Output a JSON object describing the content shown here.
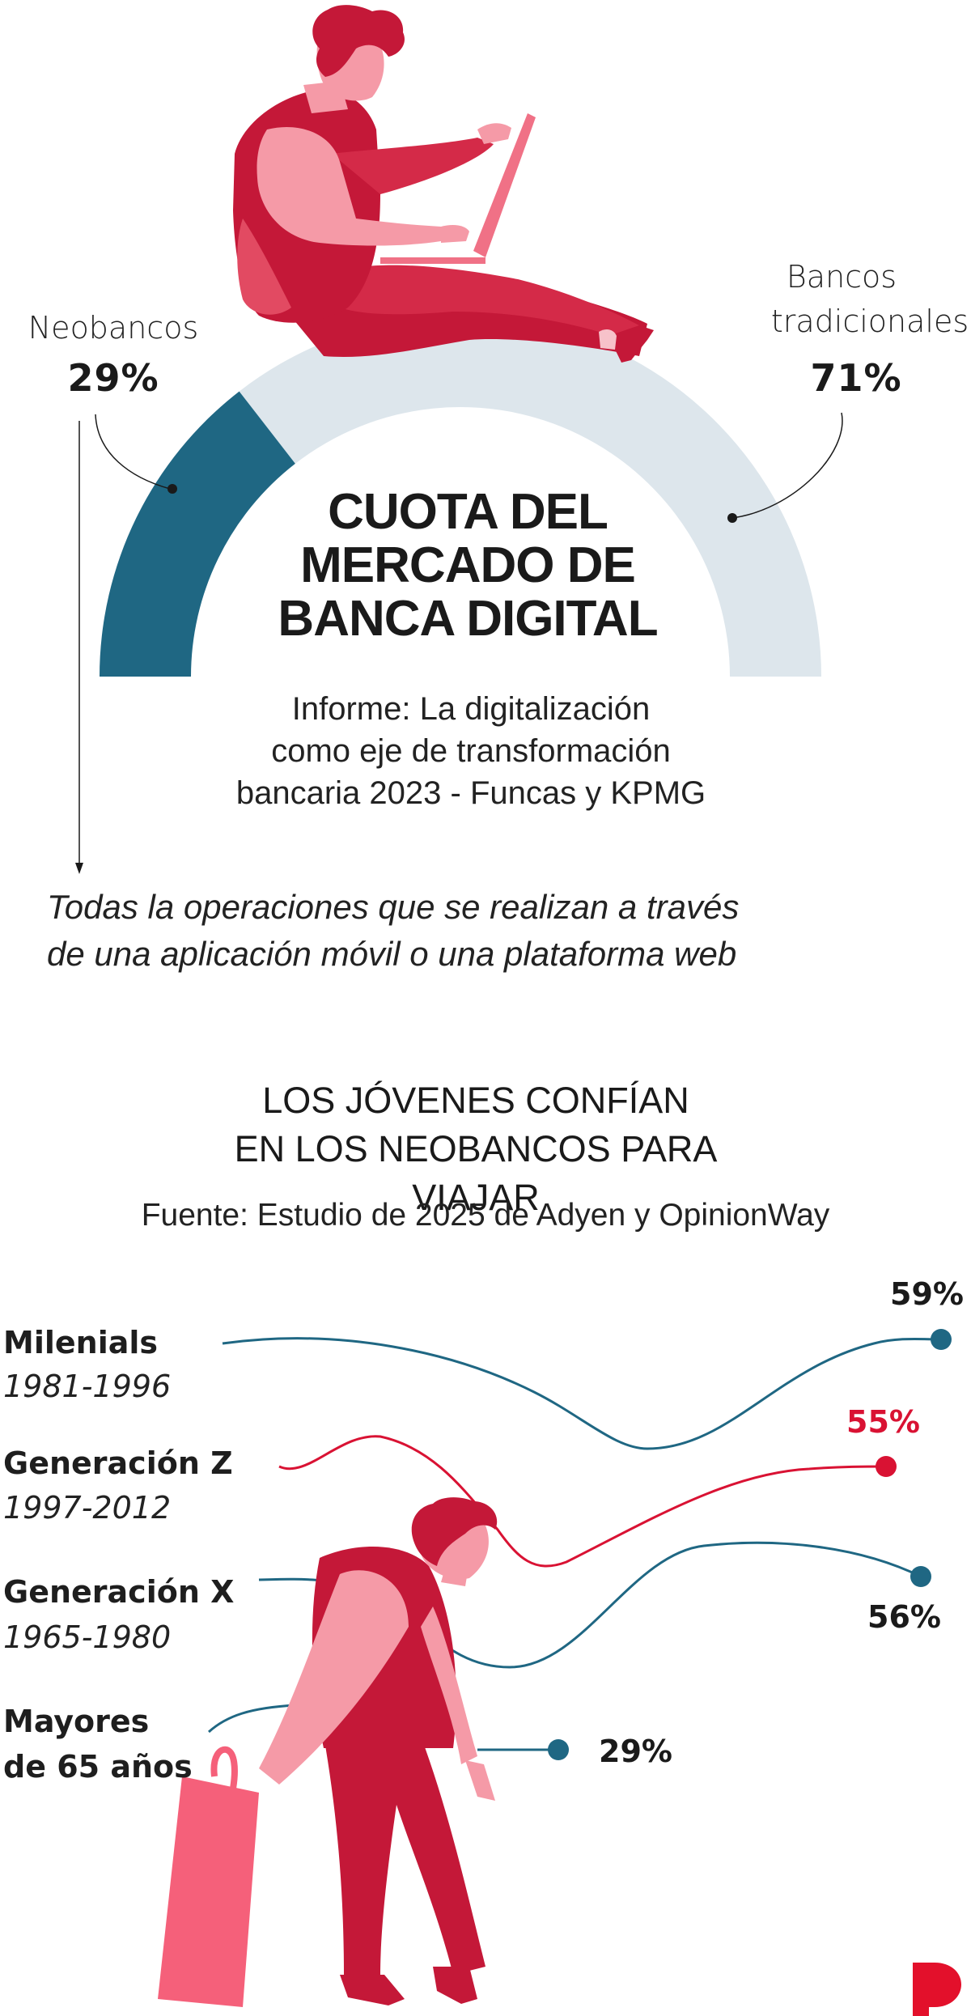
{
  "colors": {
    "teal": "#1f6783",
    "light_arc": "#dde6ec",
    "red": "#d91233",
    "crimson": "#c41838",
    "pink": "#f07186",
    "light_pink": "#f59aa7",
    "text": "#1a1a1a",
    "logo_red": "#e3102b"
  },
  "section1": {
    "title_lines": [
      "CUOTA DEL",
      "MERCADO DE",
      "BANCA DIGITAL"
    ],
    "source_lines": [
      "Informe: La digitalización",
      "como eje de transformación",
      "bancaria 2023 - Funcas y KPMG"
    ],
    "note_lines": [
      "Todas la operaciones que se realizan a través",
      "de una aplicación móvil o una plataforma web"
    ]
  },
  "section2": {
    "title_lines": [
      "LOS JÓVENES CONFÍAN",
      "EN LOS NEOBANCOS PARA VIAJAR"
    ],
    "source": "Fuente: Estudio de 2025 de Adyen y OpinionWay"
  },
  "chart_data": [
    {
      "type": "pie",
      "subtype": "half-donut",
      "title": "CUOTA DEL MERCADO DE BANCA DIGITAL",
      "subtitle": "Informe: La digitalización como eje de transformación bancaria 2023 - Funcas y KPMG",
      "slices": [
        {
          "label": "Neobancos",
          "label_lines": [
            "Neobancos"
          ],
          "value": 29,
          "display": "29%",
          "color": "#1f6783"
        },
        {
          "label": "Bancos tradicionales",
          "label_lines": [
            "Bancos",
            "tradicionales"
          ],
          "value": 71,
          "display": "71%",
          "color": "#dde6ec"
        }
      ]
    },
    {
      "type": "table",
      "title": "LOS JÓVENES CONFÍAN EN LOS NEOBANCOS PARA VIAJAR",
      "subtitle": "Fuente: Estudio de 2025 de Adyen y OpinionWay",
      "rows": [
        {
          "group": "Milenials",
          "years": "1981-1996",
          "value": 59,
          "display": "59%",
          "color": "#1f6783",
          "value_color": "#1a1a1a"
        },
        {
          "group": "Generación Z",
          "years": "1997-2012",
          "value": 55,
          "display": "55%",
          "color": "#d91233",
          "value_color": "#d91233"
        },
        {
          "group": "Generación X",
          "years": "1965-1980",
          "value": 56,
          "display": "56%",
          "color": "#1f6783",
          "value_color": "#1a1a1a"
        },
        {
          "group_lines": [
            "Mayores",
            "de 65 años"
          ],
          "group": "Mayores de 65 años",
          "years": "",
          "value": 29,
          "display": "29%",
          "color": "#1f6783",
          "value_color": "#1a1a1a"
        }
      ]
    }
  ],
  "logo": {
    "letter": "P"
  }
}
